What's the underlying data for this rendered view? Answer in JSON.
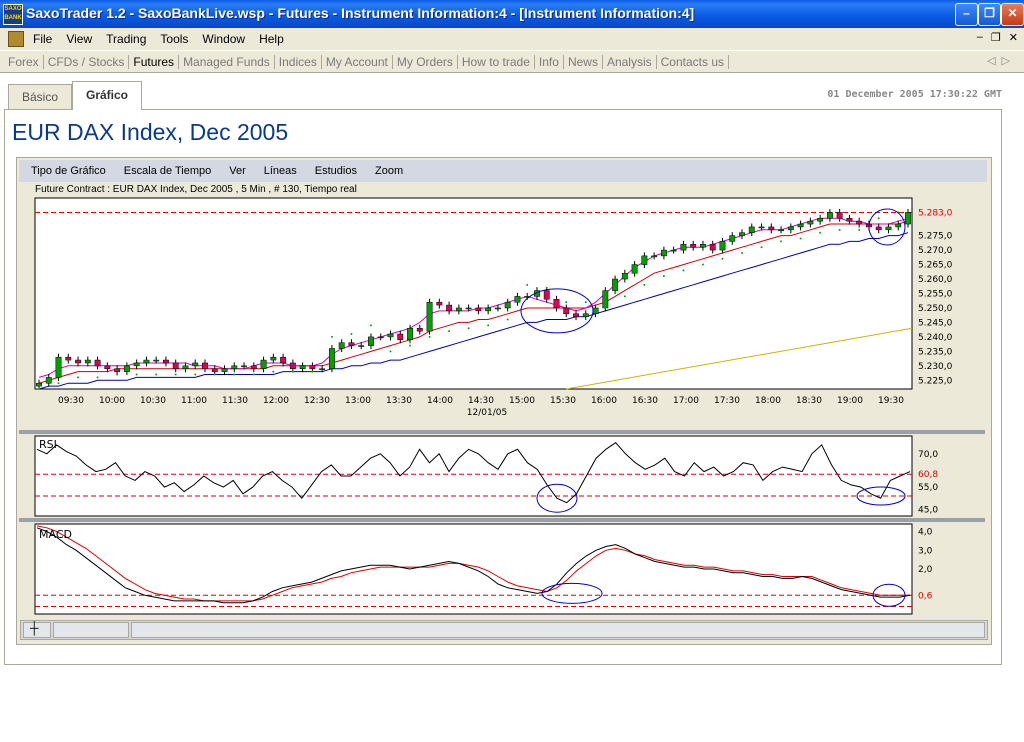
{
  "window": {
    "title": "SaxoTrader 1.2 - SaxoBankLive.wsp - Futures - Instrument Information:4 - [Instrument Information:4]",
    "logo_text": "SAXO BANK"
  },
  "menu": [
    "File",
    "View",
    "Trading",
    "Tools",
    "Window",
    "Help"
  ],
  "navbar": {
    "items": [
      "Forex",
      "CFDs / Stocks",
      "Futures",
      "Managed Funds",
      "Indices",
      "My Account",
      "My Orders",
      "How to trade",
      "Info",
      "News",
      "Analysis",
      "Contacts us"
    ],
    "active": "Futures"
  },
  "tabs": [
    {
      "label": "Básico",
      "active": false
    },
    {
      "label": "Gráfico",
      "active": true
    }
  ],
  "timestamp": "01 December 2005 17:30:22 GMT",
  "instrument_title": "EUR DAX Index, Dec 2005",
  "chart_menu": [
    "Tipo de Gráfico",
    "Escala de Tiempo",
    "Ver",
    "Líneas",
    "Estudios",
    "Zoom"
  ],
  "contract_description": "Future Contract : EUR DAX Index, Dec 2005 , 5 Min , # 130, Tiempo real",
  "colors": {
    "accent": "#0b3a8a",
    "up_candle": "#00a000",
    "down_candle": "#e00050",
    "ma_short": "#cc00cc",
    "ma_mid": "#cc0000",
    "ma_long": "#0000aa",
    "ma_longest": "#d4b000",
    "sar_dots": "#00aa00",
    "ref_line": "#dd0000",
    "highlight_circle": "#0000cc"
  },
  "chart_data": [
    {
      "type": "candlestick",
      "date_label": "12/01/05",
      "x_ticks": [
        "09:30",
        "10:00",
        "10:30",
        "11:00",
        "11:30",
        "12:00",
        "12:30",
        "13:00",
        "13:30",
        "14:00",
        "14:30",
        "15:00",
        "15:30",
        "16:00",
        "16:30",
        "17:00",
        "17:30",
        "18:00",
        "18:30",
        "19:00",
        "19:30"
      ],
      "y_ticks": [
        "5.225,0",
        "5.230,0",
        "5.235,0",
        "5.240,0",
        "5.245,0",
        "5.250,0",
        "5.255,0",
        "5.260,0",
        "5.265,0",
        "5.270,0",
        "5.275,0"
      ],
      "ylim": [
        5222,
        5288
      ],
      "last_price_label": "5.283,0",
      "last_price": 5283,
      "closes": [
        5224,
        5226,
        5233,
        5232,
        5231,
        5232,
        5230,
        5229,
        5228,
        5230,
        5231,
        5232,
        5232,
        5231,
        5229,
        5230,
        5231,
        5229,
        5228,
        5229,
        5230,
        5230,
        5229,
        5232,
        5233,
        5231,
        5229,
        5230,
        5229,
        5229,
        5236,
        5238,
        5237,
        5237,
        5240,
        5240,
        5241,
        5239,
        5243,
        5242,
        5252,
        5251,
        5249,
        5250,
        5250,
        5249,
        5250,
        5250,
        5252,
        5254,
        5254,
        5256,
        5253,
        5250,
        5248,
        5247,
        5248,
        5250,
        5256,
        5260,
        5262,
        5265,
        5268,
        5268,
        5270,
        5270,
        5272,
        5271,
        5272,
        5270,
        5273,
        5275,
        5276,
        5278,
        5278,
        5277,
        5277,
        5278,
        5279,
        5280,
        5281,
        5283,
        5281,
        5280,
        5279,
        5278,
        5277,
        5278,
        5279,
        5283
      ],
      "ma_short": [
        5226,
        5227,
        5229,
        5230,
        5230,
        5230,
        5230,
        5230,
        5230,
        5230,
        5231,
        5231,
        5231,
        5231,
        5231,
        5231,
        5230,
        5230,
        5230,
        5229,
        5229,
        5229,
        5230,
        5231,
        5231,
        5231,
        5230,
        5230,
        5230,
        5231,
        5234,
        5236,
        5237,
        5238,
        5239,
        5240,
        5241,
        5242,
        5243,
        5245,
        5248,
        5249,
        5249,
        5249,
        5249,
        5250,
        5250,
        5251,
        5252,
        5253,
        5254,
        5253,
        5252,
        5251,
        5250,
        5249,
        5250,
        5252,
        5255,
        5258,
        5261,
        5264,
        5266,
        5268,
        5269,
        5270,
        5271,
        5271,
        5271,
        5272,
        5273,
        5274,
        5275,
        5276,
        5277,
        5277,
        5277,
        5278,
        5279,
        5280,
        5281,
        5281,
        5281,
        5280,
        5280,
        5279,
        5279,
        5279,
        5280,
        5281
      ],
      "ma_mid": [
        5224,
        5225,
        5226,
        5227,
        5228,
        5228,
        5228,
        5228,
        5229,
        5229,
        5229,
        5229,
        5229,
        5229,
        5229,
        5229,
        5229,
        5229,
        5229,
        5229,
        5229,
        5229,
        5229,
        5229,
        5230,
        5230,
        5230,
        5230,
        5230,
        5230,
        5231,
        5232,
        5233,
        5234,
        5235,
        5236,
        5237,
        5238,
        5239,
        5240,
        5242,
        5243,
        5244,
        5245,
        5245,
        5246,
        5246,
        5247,
        5248,
        5249,
        5250,
        5250,
        5250,
        5250,
        5250,
        5250,
        5250,
        5251,
        5252,
        5254,
        5256,
        5258,
        5260,
        5262,
        5263,
        5264,
        5265,
        5266,
        5267,
        5268,
        5269,
        5270,
        5271,
        5272,
        5273,
        5274,
        5275,
        5275,
        5276,
        5277,
        5278,
        5279,
        5279,
        5279,
        5279,
        5279,
        5279,
        5279,
        5279,
        5280
      ],
      "ma_long": [
        5222,
        5223,
        5223,
        5224,
        5224,
        5224,
        5225,
        5225,
        5225,
        5225,
        5226,
        5226,
        5226,
        5226,
        5226,
        5226,
        5226,
        5227,
        5227,
        5227,
        5227,
        5227,
        5227,
        5227,
        5227,
        5228,
        5228,
        5228,
        5228,
        5228,
        5229,
        5229,
        5230,
        5230,
        5231,
        5231,
        5232,
        5232,
        5233,
        5234,
        5235,
        5236,
        5237,
        5238,
        5239,
        5240,
        5241,
        5242,
        5243,
        5244,
        5245,
        5245,
        5246,
        5246,
        5246,
        5247,
        5247,
        5248,
        5249,
        5250,
        5251,
        5252,
        5253,
        5254,
        5255,
        5256,
        5257,
        5258,
        5259,
        5260,
        5261,
        5262,
        5263,
        5264,
        5265,
        5266,
        5267,
        5268,
        5269,
        5270,
        5271,
        5272,
        5272,
        5273,
        5273,
        5274,
        5274,
        5275,
        5275,
        5276
      ],
      "ma_longest_start": 5222,
      "ma_longest_end": 5243
    },
    {
      "type": "line",
      "name": "RSI",
      "y_ticks": [
        "45,0",
        "55,0",
        "70,0"
      ],
      "ylim": [
        42,
        78
      ],
      "ref_label": "60,8",
      "ref_levels": [
        60.8,
        51
      ],
      "values": [
        72,
        70,
        74,
        71,
        69,
        65,
        62,
        63,
        66,
        60,
        58,
        62,
        60,
        55,
        57,
        53,
        56,
        60,
        57,
        55,
        58,
        52,
        55,
        60,
        62,
        58,
        55,
        50,
        56,
        62,
        65,
        60,
        60,
        64,
        68,
        70,
        66,
        60,
        64,
        72,
        66,
        70,
        62,
        68,
        72,
        70,
        66,
        63,
        70,
        72,
        66,
        63,
        56,
        50,
        48,
        52,
        60,
        68,
        72,
        75,
        70,
        66,
        63,
        65,
        68,
        62,
        60,
        66,
        62,
        64,
        60,
        62,
        66,
        65,
        58,
        62,
        64,
        63,
        62,
        70,
        74,
        65,
        58,
        56,
        55,
        52,
        50,
        58,
        60,
        62
      ]
    },
    {
      "type": "line",
      "name": "MACD",
      "y_ticks": [
        "0,6",
        "2,0",
        "3,0",
        "4,0"
      ],
      "ylim": [
        -0.4,
        4.4
      ],
      "ref_label": "0,6",
      "ref_levels": [
        0.6,
        0.0
      ],
      "macd": [
        4.2,
        4.0,
        3.7,
        3.3,
        3.0,
        2.6,
        2.2,
        1.8,
        1.4,
        1.0,
        0.8,
        0.6,
        0.5,
        0.4,
        0.3,
        0.3,
        0.3,
        0.3,
        0.3,
        0.2,
        0.2,
        0.2,
        0.3,
        0.5,
        0.8,
        1.0,
        1.1,
        1.2,
        1.3,
        1.5,
        1.7,
        1.9,
        2.0,
        2.1,
        2.2,
        2.2,
        2.2,
        2.1,
        2.0,
        2.1,
        2.2,
        2.3,
        2.4,
        2.3,
        2.1,
        1.9,
        1.6,
        1.2,
        1.0,
        0.9,
        0.8,
        0.7,
        0.8,
        1.2,
        1.8,
        2.3,
        2.7,
        3.0,
        3.2,
        3.3,
        3.1,
        2.8,
        2.6,
        2.4,
        2.3,
        2.2,
        2.1,
        2.1,
        2.0,
        2.0,
        1.9,
        1.8,
        1.8,
        1.7,
        1.6,
        1.6,
        1.5,
        1.5,
        1.6,
        1.5,
        1.3,
        1.1,
        0.9,
        0.8,
        0.7,
        0.6,
        0.5,
        0.5,
        0.5,
        0.6
      ],
      "signal": [
        4.3,
        4.2,
        4.0,
        3.7,
        3.4,
        3.1,
        2.7,
        2.3,
        1.9,
        1.5,
        1.2,
        0.9,
        0.7,
        0.6,
        0.5,
        0.4,
        0.4,
        0.3,
        0.3,
        0.3,
        0.3,
        0.3,
        0.3,
        0.4,
        0.6,
        0.8,
        1.0,
        1.1,
        1.2,
        1.3,
        1.5,
        1.6,
        1.8,
        1.9,
        2.0,
        2.1,
        2.1,
        2.1,
        2.1,
        2.1,
        2.1,
        2.2,
        2.3,
        2.3,
        2.2,
        2.1,
        1.9,
        1.6,
        1.3,
        1.1,
        1.0,
        0.9,
        0.8,
        1.0,
        1.4,
        1.9,
        2.3,
        2.7,
        3.0,
        3.1,
        3.0,
        2.8,
        2.7,
        2.5,
        2.4,
        2.3,
        2.2,
        2.2,
        2.1,
        2.1,
        2.0,
        1.9,
        1.9,
        1.8,
        1.7,
        1.7,
        1.6,
        1.6,
        1.6,
        1.6,
        1.4,
        1.2,
        1.0,
        0.9,
        0.8,
        0.7,
        0.6,
        0.6,
        0.6,
        0.6
      ]
    }
  ]
}
